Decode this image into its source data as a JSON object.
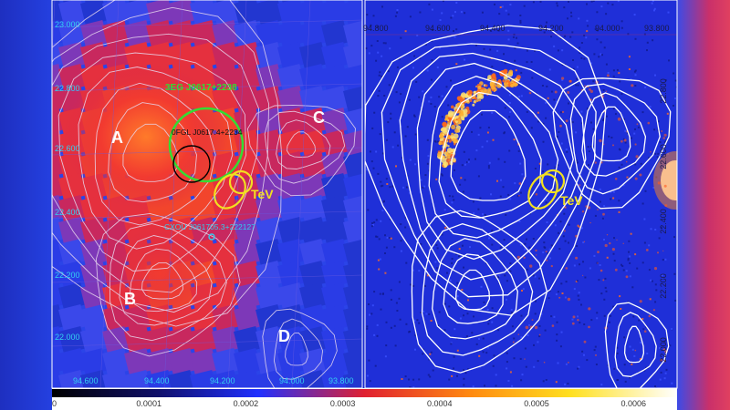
{
  "left_panel": {
    "ra_ticks": [
      "94.600",
      "94.400",
      "94.200",
      "94.000",
      "93.800"
    ],
    "dec_ticks": [
      "23.000",
      "22.800",
      "22.600",
      "22.400",
      "22.200",
      "22.000"
    ],
    "regions": [
      "A",
      "B",
      "C",
      "D"
    ],
    "labels": {
      "egret": "3EG J0617+2238",
      "fermi": "0FGL J0617.4+2234",
      "chandra": "CXOU J061705.3+222127",
      "tev": "TeV"
    },
    "colors": {
      "egret": "#33dd33",
      "fermi": "#000000",
      "chandra": "#33ccee",
      "tev": "#f2e020"
    }
  },
  "right_panel": {
    "ra_ticks": [
      "94.800",
      "94.600",
      "94.400",
      "94.200",
      "94.000",
      "93.800"
    ],
    "dec_ticks": [
      "22.800",
      "22.600",
      "22.400",
      "22.200",
      "22.000"
    ],
    "labels": {
      "tev": "TeV"
    }
  },
  "colorbar": {
    "ticks": [
      "0",
      "0.0001",
      "0.0002",
      "0.0003",
      "0.0004",
      "0.0005",
      "0.0006"
    ]
  }
}
